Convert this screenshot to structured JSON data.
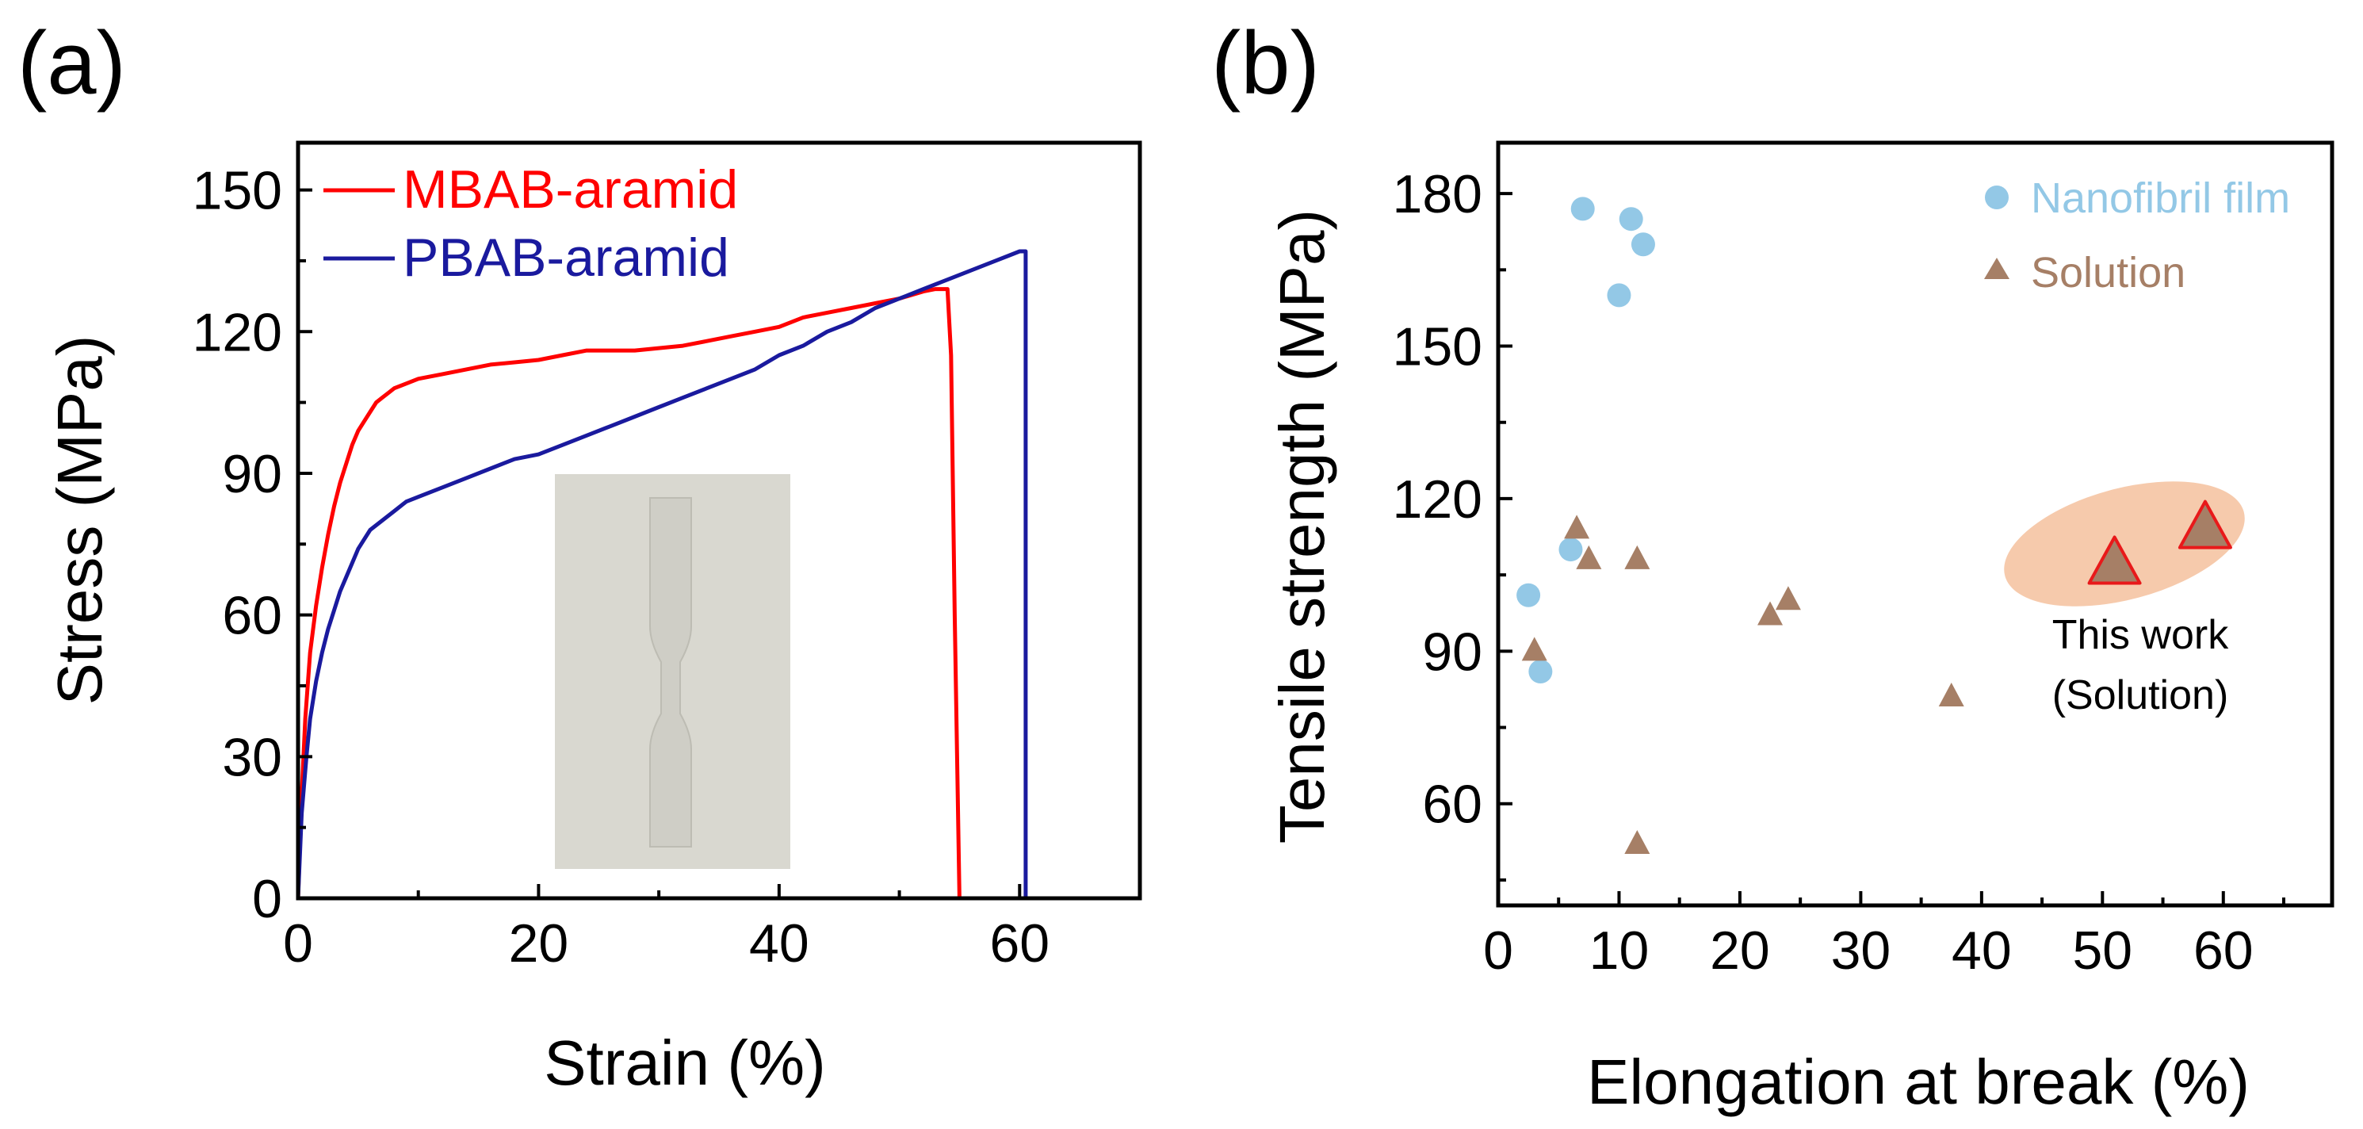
{
  "panels": {
    "a": {
      "label": "(a)"
    },
    "b": {
      "label": "(b)"
    }
  },
  "chart_data": [
    {
      "id": "a",
      "type": "line",
      "title": "",
      "xlabel": "Strain (%)",
      "ylabel": "Stress (MPa)",
      "xlim": [
        0,
        70
      ],
      "ylim": [
        0,
        160
      ],
      "xticks": [
        0,
        20,
        40,
        60
      ],
      "yticks": [
        0,
        30,
        60,
        90,
        120,
        150
      ],
      "grid": false,
      "legend_position": "top-left",
      "inset": "photo of dog-bone tensile specimen",
      "series": [
        {
          "name": "MBAB-aramid",
          "color": "#ff0000",
          "x": [
            0,
            0.3,
            0.6,
            1,
            1.5,
            2,
            2.5,
            3,
            3.5,
            4,
            4.5,
            5,
            5.5,
            6,
            6.5,
            7,
            7.5,
            8,
            9,
            10,
            12,
            14,
            16,
            18,
            20,
            22,
            24,
            26,
            28,
            30,
            32,
            34,
            36,
            38,
            40,
            42,
            44,
            46,
            48,
            50,
            52,
            53,
            54,
            54.3,
            54.6,
            54.9,
            55
          ],
          "y": [
            0,
            22,
            38,
            52,
            62,
            70,
            77,
            83,
            88,
            92,
            96,
            99,
            101,
            103,
            105,
            106,
            107,
            108,
            109,
            110,
            111,
            112,
            113,
            113.5,
            114,
            115,
            116,
            116,
            116,
            116.5,
            117,
            118,
            119,
            120,
            121,
            123,
            124,
            125,
            126,
            127,
            128.5,
            129,
            129,
            115,
            60,
            15,
            0
          ]
        },
        {
          "name": "PBAB-aramid",
          "color": "#1a1a9e",
          "x": [
            0,
            0.3,
            0.7,
            1,
            1.5,
            2,
            2.5,
            3,
            3.5,
            4,
            4.5,
            5,
            5.5,
            6,
            7,
            8,
            9,
            10,
            12,
            14,
            16,
            18,
            20,
            22,
            24,
            26,
            28,
            30,
            32,
            34,
            36,
            38,
            40,
            42,
            44,
            46,
            48,
            50,
            52,
            54,
            56,
            58,
            59,
            60,
            60.5,
            60.5
          ],
          "y": [
            0,
            18,
            30,
            38,
            46,
            52,
            57,
            61,
            65,
            68,
            71,
            74,
            76,
            78,
            80,
            82,
            84,
            85,
            87,
            89,
            91,
            93,
            94,
            96,
            98,
            100,
            102,
            104,
            106,
            108,
            110,
            112,
            115,
            117,
            120,
            122,
            125,
            127,
            129,
            131,
            133,
            135,
            136,
            137,
            137,
            0
          ]
        }
      ]
    },
    {
      "id": "b",
      "type": "scatter",
      "title": "",
      "xlabel": "Elongation at break (%)",
      "ylabel": "Tensile strength (MPa)",
      "xlim": [
        0,
        69
      ],
      "ylim": [
        40,
        190
      ],
      "xticks": [
        0,
        10,
        20,
        30,
        40,
        50,
        60
      ],
      "yticks": [
        60,
        90,
        120,
        150,
        180
      ],
      "grid": false,
      "legend_position": "top-right",
      "annotation": {
        "lines": [
          "This work",
          "(Solution)"
        ],
        "x": 55,
        "y": 111
      },
      "series": [
        {
          "name": "Nanofibril film",
          "marker": "circle",
          "color": "#93c8e6",
          "x": [
            7,
            11,
            12,
            10,
            6,
            2.5,
            3.5
          ],
          "y": [
            177,
            175,
            170,
            160,
            110,
            101,
            86
          ]
        },
        {
          "name": "Solution",
          "marker": "triangle",
          "color": "#a67f66",
          "x": [
            6.5,
            7.5,
            11.5,
            3,
            22.5,
            24,
            37.5,
            11.5
          ],
          "y": [
            114,
            108,
            108,
            90,
            97,
            100,
            81,
            52
          ]
        },
        {
          "name": "This work",
          "marker": "triangle-large",
          "color": "#a67f66",
          "edge_color": "#e8191a",
          "x": [
            51,
            58.5
          ],
          "y": [
            107,
            114
          ]
        }
      ]
    }
  ]
}
